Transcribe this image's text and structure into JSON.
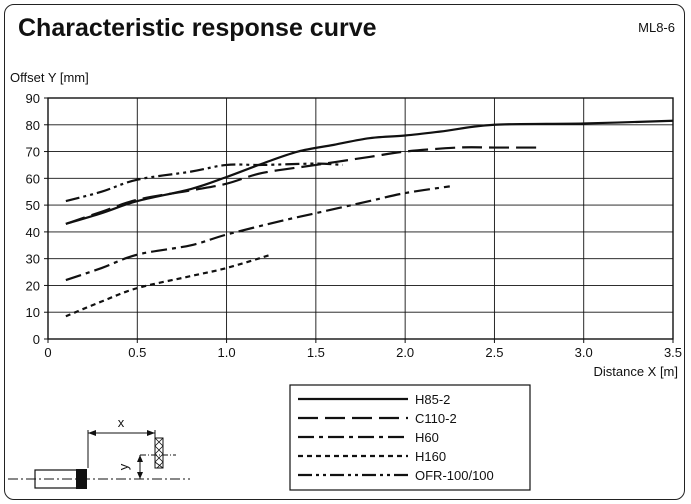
{
  "header": {
    "title": "Characteristic response curve",
    "code": "ML8-6"
  },
  "chart_data": {
    "type": "line",
    "ylabel": "Offset Y [mm]",
    "xlabel": "Distance X [m]",
    "xlim": [
      0,
      3.5
    ],
    "ylim": [
      0,
      90
    ],
    "xticks": [
      "0",
      "0.5",
      "1.0",
      "1.5",
      "2.0",
      "2.5",
      "3.0",
      "3.5"
    ],
    "yticks": [
      "0",
      "10",
      "20",
      "30",
      "40",
      "50",
      "60",
      "70",
      "80",
      "90"
    ],
    "grid": true,
    "legend_position": "bottom-right",
    "series": [
      {
        "name": "H85-2",
        "dash": "solid",
        "x": [
          0.1,
          0.3,
          0.5,
          0.8,
          1.0,
          1.2,
          1.4,
          1.6,
          1.8,
          2.0,
          2.2,
          2.5,
          3.0,
          3.5
        ],
        "y": [
          43,
          47,
          51.5,
          56,
          60.5,
          65.5,
          70,
          72.5,
          75,
          76,
          77.5,
          80,
          80.5,
          81.5
        ]
      },
      {
        "name": "C110-2",
        "dash": "long-dash",
        "x": [
          0.1,
          0.3,
          0.5,
          0.8,
          1.0,
          1.2,
          1.5,
          1.8,
          2.0,
          2.3,
          2.5,
          2.75
        ],
        "y": [
          43,
          47.5,
          52,
          55.5,
          58,
          62,
          65,
          68,
          70,
          71.5,
          71.5,
          71.5
        ]
      },
      {
        "name": "H60",
        "dash": "dash-dot",
        "x": [
          0.1,
          0.3,
          0.5,
          0.8,
          1.0,
          1.3,
          1.5,
          1.8,
          2.0,
          2.25
        ],
        "y": [
          22,
          26.5,
          31.5,
          35,
          39,
          44,
          47,
          51.5,
          54.5,
          57
        ]
      },
      {
        "name": "H160",
        "dash": "short-dash",
        "x": [
          0.1,
          0.3,
          0.5,
          0.8,
          1.0,
          1.25
        ],
        "y": [
          8.5,
          14,
          19,
          23.5,
          26.5,
          31.5
        ]
      },
      {
        "name": "OFR-100/100",
        "dash": "dash-dot-dot",
        "x": [
          0.1,
          0.3,
          0.5,
          0.8,
          1.0,
          1.2,
          1.5,
          1.65
        ],
        "y": [
          51.5,
          55,
          59.5,
          62.5,
          65,
          65,
          65.5,
          65
        ]
      }
    ]
  },
  "diagram": {
    "x_label": "x",
    "y_label": "y"
  }
}
